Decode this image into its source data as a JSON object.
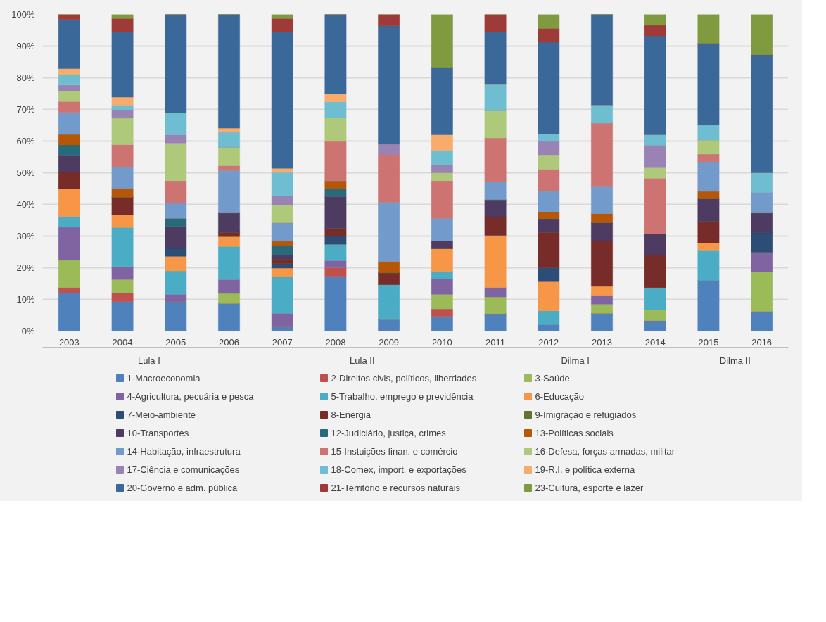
{
  "chart_data": {
    "type": "bar",
    "stacked": true,
    "categories": [
      "2003",
      "2004",
      "2005",
      "2006",
      "2007",
      "2008",
      "2009",
      "2010",
      "2011",
      "2012",
      "2013",
      "2014",
      "2015",
      "2016"
    ],
    "annotations": [
      "Lula I",
      "Lula II",
      "Dilma I",
      "Dilma II"
    ],
    "ylim": [
      0,
      100
    ],
    "yticks": [
      {
        "value": 0,
        "label": "0%"
      },
      {
        "value": 10,
        "label": "10%"
      },
      {
        "value": 20,
        "label": "20%"
      },
      {
        "value": 30,
        "label": "30%"
      },
      {
        "value": 40,
        "label": "40%"
      },
      {
        "value": 50,
        "label": "50%"
      },
      {
        "value": 60,
        "label": "60%"
      },
      {
        "value": 70,
        "label": "70%"
      },
      {
        "value": 80,
        "label": "80%"
      },
      {
        "value": 90,
        "label": "90%"
      },
      {
        "value": 100,
        "label": "100%"
      }
    ],
    "grid": "y",
    "legend": "bottom",
    "series": [
      {
        "name": "1-Macroeconomia",
        "color": "#4f81bd",
        "values": [
          12.0,
          9.3,
          9.3,
          8.7,
          1.3,
          17.3,
          3.6,
          4.6,
          5.5,
          2.0,
          5.6,
          3.3,
          16.0,
          6.2
        ]
      },
      {
        "name": "2-Direitos civis, políticos, liberdades",
        "color": "#c0504d",
        "values": [
          1.8,
          2.8,
          0,
          0,
          0,
          2.7,
          0,
          2.4,
          0,
          0,
          0,
          0,
          0,
          0
        ]
      },
      {
        "name": "3-Saúde",
        "color": "#9bbb59",
        "values": [
          8.6,
          4.2,
          0,
          3.2,
          0,
          0,
          0,
          4.6,
          5.3,
          0,
          2.9,
          3.4,
          0,
          12.5
        ]
      },
      {
        "name": "4-Agricultura, pecuária e pesca",
        "color": "#8064a2",
        "values": [
          10.4,
          4.1,
          2.3,
          4.4,
          4.3,
          2.3,
          0,
          4.9,
          3.0,
          0,
          2.8,
          0,
          0,
          6.2
        ]
      },
      {
        "name": "5-Trabalho, emprego e previdência",
        "color": "#4bacc6",
        "values": [
          3.4,
          12.3,
          7.4,
          10.4,
          11.5,
          5.1,
          11.1,
          2.4,
          0,
          4.4,
          0,
          7.0,
          9.4,
          0
        ]
      },
      {
        "name": "6-Educação",
        "color": "#f79646",
        "values": [
          8.8,
          4.1,
          4.6,
          3.2,
          2.8,
          0,
          0,
          7.2,
          16.5,
          9.2,
          2.9,
          0,
          2.4,
          0
        ]
      },
      {
        "name": "7-Meio-ambiente",
        "color": "#2c4d75",
        "values": [
          0,
          0,
          2.6,
          0,
          1.4,
          2.5,
          0,
          0,
          0,
          4.4,
          0,
          0,
          0,
          6.2
        ]
      },
      {
        "name": "8-Energia",
        "color": "#772c2a",
        "values": [
          5.2,
          5.5,
          0,
          1.3,
          1.5,
          2.6,
          3.7,
          0,
          5.8,
          11.2,
          14.3,
          10.4,
          6.9,
          0
        ]
      },
      {
        "name": "9-Imigração e refugiados",
        "color": "#5f7530",
        "values": [
          0,
          0,
          0,
          0,
          0,
          0,
          0,
          0,
          0,
          0,
          0,
          0,
          0,
          0
        ]
      },
      {
        "name": "10-Transportes",
        "color": "#4d3b62",
        "values": [
          5.2,
          0,
          6.9,
          6.1,
          1.3,
          10.0,
          0,
          2.4,
          5.4,
          4.3,
          5.7,
          6.7,
          7.1,
          6.2
        ]
      },
      {
        "name": "12-Judiciário, justiça, crimes",
        "color": "#276a7c",
        "values": [
          3.4,
          0,
          2.5,
          0,
          2.8,
          2.4,
          0,
          0,
          0,
          0,
          0,
          0,
          0,
          0
        ]
      },
      {
        "name": "13-Políticas sociais",
        "color": "#b65708",
        "values": [
          3.3,
          2.8,
          0,
          0,
          1.5,
          2.6,
          3.6,
          0,
          0,
          2.1,
          2.9,
          0,
          2.3,
          0
        ]
      },
      {
        "name": "14-Habitação, infraestrutura",
        "color": "#729aca",
        "values": [
          7.0,
          6.8,
          4.8,
          13.4,
          5.8,
          0,
          18.7,
          7.1,
          5.7,
          6.7,
          8.5,
          0,
          9.4,
          6.5
        ]
      },
      {
        "name": "15-Instuições finan. e comércio",
        "color": "#cd7371",
        "values": [
          3.4,
          7.0,
          7.1,
          1.5,
          0,
          12.4,
          14.9,
          11.9,
          13.8,
          6.8,
          20.1,
          17.5,
          2.4,
          0
        ]
      },
      {
        "name": "16-Defesa, forças armadas, militar",
        "color": "#afc97a",
        "values": [
          3.4,
          8.4,
          11.9,
          5.9,
          5.7,
          7.5,
          0,
          2.5,
          8.6,
          4.4,
          0,
          3.3,
          4.5,
          0
        ]
      },
      {
        "name": "17-Ciência e comunicações",
        "color": "#9983b5",
        "values": [
          1.8,
          2.6,
          2.6,
          0,
          2.9,
          0,
          3.5,
          2.4,
          0,
          4.4,
          0,
          7.1,
          0,
          0
        ]
      },
      {
        "name": "18-Comex, import. e exportações",
        "color": "#6fbdd1",
        "values": [
          3.4,
          1.5,
          7.0,
          4.7,
          7.3,
          5.0,
          0,
          4.7,
          8.3,
          2.4,
          5.7,
          3.3,
          4.7,
          6.2
        ]
      },
      {
        "name": "19-R.I. e política externa",
        "color": "#f9ab6b",
        "values": [
          1.8,
          2.5,
          0,
          1.3,
          1.3,
          2.6,
          0,
          4.9,
          0,
          0,
          0,
          0,
          0,
          0
        ]
      },
      {
        "name": "20-Governo e adm. pública",
        "color": "#3a6899",
        "values": [
          15.5,
          20.6,
          31.0,
          35.9,
          43.1,
          25.0,
          37.3,
          21.3,
          16.6,
          28.9,
          28.6,
          31.2,
          25.8,
          37.3
        ]
      },
      {
        "name": "21-Território e recursos naturais",
        "color": "#9e3b38",
        "values": [
          1.6,
          4.2,
          0,
          0,
          4.2,
          0,
          3.6,
          0,
          5.5,
          4.4,
          0,
          3.4,
          0,
          0
        ]
      },
      {
        "name": "23-Cultura, esporte e lazer",
        "color": "#7f9a3f",
        "values": [
          0,
          1.3,
          0,
          0,
          1.3,
          0,
          0,
          16.7,
          0,
          4.4,
          0,
          3.4,
          9.1,
          12.7
        ]
      }
    ]
  }
}
